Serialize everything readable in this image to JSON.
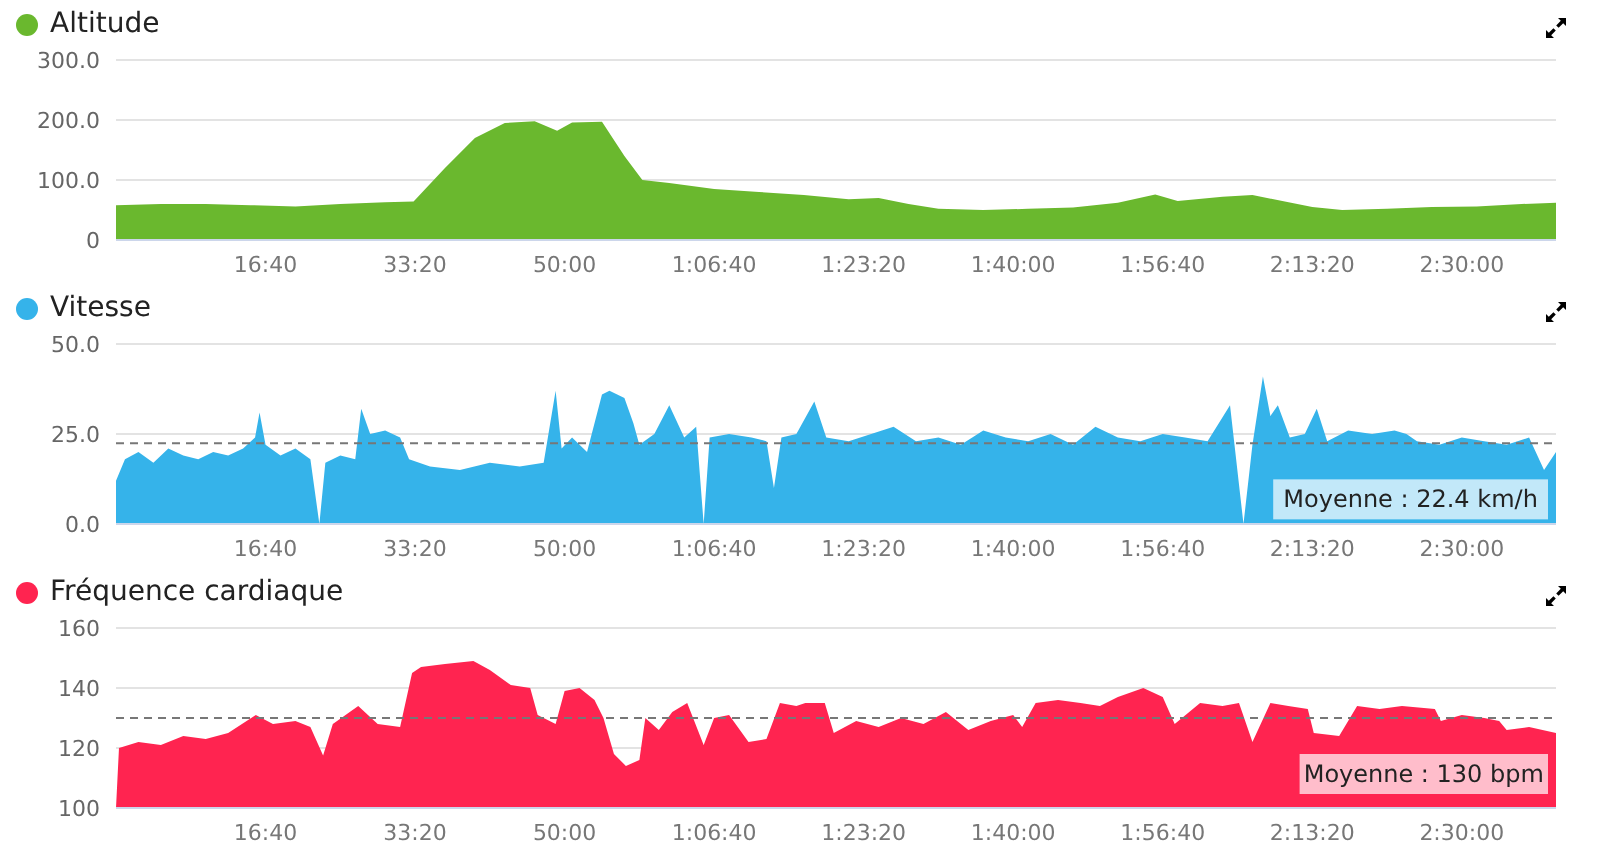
{
  "chart_data": [
    {
      "type": "area",
      "title": "Altitude",
      "xlim": [
        0,
        9630
      ],
      "xticks": [
        {
          "value": 1000,
          "label": "16:40"
        },
        {
          "value": 2000,
          "label": "33:20"
        },
        {
          "value": 3000,
          "label": "50:00"
        },
        {
          "value": 4000,
          "label": "1:06:40"
        },
        {
          "value": 5000,
          "label": "1:23:20"
        },
        {
          "value": 6000,
          "label": "1:40:00"
        },
        {
          "value": 7000,
          "label": "1:56:40"
        },
        {
          "value": 8000,
          "label": "2:13:20"
        },
        {
          "value": 9000,
          "label": "2:30:00"
        }
      ],
      "ylim": [
        0,
        300
      ],
      "yticks": [
        0,
        {
          "value": 100,
          "label": "100.0"
        },
        {
          "value": 200,
          "label": "200.0"
        },
        {
          "value": 300,
          "label": "300.0"
        }
      ],
      "grid": "y",
      "series": [
        {
          "color": "#6ab82e",
          "x": [
            0,
            300,
            600,
            900,
            1200,
            1500,
            1800,
            1990,
            2200,
            2400,
            2600,
            2800,
            2950,
            3050,
            3250,
            3400,
            3520,
            3700,
            4000,
            4300,
            4600,
            4900,
            5100,
            5300,
            5500,
            5800,
            6100,
            6400,
            6700,
            6950,
            7100,
            7400,
            7600,
            7800,
            8000,
            8200,
            8500,
            8800,
            9100,
            9400,
            9630
          ],
          "values": [
            58,
            60,
            60,
            58,
            56,
            60,
            63,
            64,
            120,
            170,
            195,
            198,
            182,
            196,
            197,
            140,
            100,
            95,
            85,
            80,
            75,
            68,
            70,
            60,
            52,
            50,
            52,
            54,
            62,
            76,
            65,
            72,
            75,
            65,
            55,
            50,
            52,
            55,
            56,
            60,
            62
          ]
        }
      ]
    },
    {
      "type": "area",
      "title": "Vitesse",
      "xlim": [
        0,
        9630
      ],
      "xticks": [
        {
          "value": 1000,
          "label": "16:40"
        },
        {
          "value": 2000,
          "label": "33:20"
        },
        {
          "value": 3000,
          "label": "50:00"
        },
        {
          "value": 4000,
          "label": "1:06:40"
        },
        {
          "value": 5000,
          "label": "1:23:20"
        },
        {
          "value": 6000,
          "label": "1:40:00"
        },
        {
          "value": 7000,
          "label": "1:56:40"
        },
        {
          "value": 8000,
          "label": "2:13:20"
        },
        {
          "value": 9000,
          "label": "2:30:00"
        }
      ],
      "ylim": [
        0,
        50
      ],
      "yticks": [
        {
          "value": 0,
          "label": "0.0"
        },
        {
          "value": 25,
          "label": "25.0"
        },
        {
          "value": 50,
          "label": "50.0"
        }
      ],
      "grid": "y",
      "ref_lines": [
        {
          "axis": "y",
          "value": 22.4,
          "label": "Moyenne : 22.4 km/h",
          "color": "#777777",
          "line_style": "dashed"
        }
      ],
      "series": [
        {
          "color": "#35b3ea",
          "x": [
            0,
            60,
            150,
            250,
            350,
            450,
            550,
            650,
            750,
            850,
            930,
            960,
            1000,
            1100,
            1200,
            1300,
            1360,
            1400,
            1500,
            1600,
            1640,
            1700,
            1800,
            1900,
            1960,
            2100,
            2300,
            2500,
            2700,
            2860,
            2940,
            2980,
            3050,
            3150,
            3250,
            3300,
            3400,
            3460,
            3500,
            3600,
            3700,
            3800,
            3880,
            3930,
            3970,
            4100,
            4250,
            4350,
            4400,
            4450,
            4550,
            4670,
            4750,
            4900,
            5050,
            5200,
            5350,
            5500,
            5650,
            5800,
            5950,
            6100,
            6250,
            6400,
            6550,
            6700,
            6850,
            7000,
            7150,
            7300,
            7450,
            7540,
            7600,
            7670,
            7720,
            7770,
            7850,
            7950,
            8030,
            8100,
            8240,
            8400,
            8550,
            8630,
            8700,
            8850,
            9000,
            9150,
            9300,
            9450,
            9550,
            9630
          ],
          "values": [
            12,
            18,
            20,
            17,
            21,
            19,
            18,
            20,
            19,
            21,
            24,
            31,
            22,
            19,
            21,
            18,
            0,
            17,
            19,
            18,
            32,
            25,
            26,
            24,
            18,
            16,
            15,
            17,
            16,
            17,
            37,
            21,
            24,
            20,
            36,
            37,
            35,
            28,
            22,
            25,
            33,
            24,
            27,
            0,
            24,
            25,
            24,
            23,
            10,
            24,
            25,
            34,
            24,
            23,
            25,
            27,
            23,
            24,
            22,
            26,
            24,
            23,
            25,
            22,
            27,
            24,
            23,
            25,
            24,
            23,
            33,
            0,
            22,
            41,
            30,
            33,
            24,
            25,
            32,
            23,
            26,
            25,
            26,
            25,
            23,
            22,
            24,
            23,
            22,
            24,
            15,
            20
          ]
        }
      ]
    },
    {
      "type": "area",
      "title": "Fréquence cardiaque",
      "xlim": [
        0,
        9630
      ],
      "xticks": [
        {
          "value": 1000,
          "label": "16:40"
        },
        {
          "value": 2000,
          "label": "33:20"
        },
        {
          "value": 3000,
          "label": "50:00"
        },
        {
          "value": 4000,
          "label": "1:06:40"
        },
        {
          "value": 5000,
          "label": "1:23:20"
        },
        {
          "value": 6000,
          "label": "1:40:00"
        },
        {
          "value": 7000,
          "label": "1:56:40"
        },
        {
          "value": 8000,
          "label": "2:13:20"
        },
        {
          "value": 9000,
          "label": "2:30:00"
        }
      ],
      "ylim": [
        100,
        160
      ],
      "yticks": [
        100,
        120,
        140,
        160
      ],
      "grid": "y",
      "ref_lines": [
        {
          "axis": "y",
          "value": 130,
          "label": "Moyenne : 130 bpm",
          "color": "#777777",
          "line_style": "dashed"
        }
      ],
      "series": [
        {
          "color": "#ff2450",
          "x": [
            0,
            20,
            150,
            300,
            450,
            600,
            750,
            935,
            1050,
            1200,
            1300,
            1385,
            1450,
            1620,
            1750,
            1900,
            1980,
            2040,
            2200,
            2390,
            2500,
            2640,
            2770,
            2820,
            2940,
            3000,
            3100,
            3200,
            3260,
            3330,
            3410,
            3500,
            3540,
            3630,
            3720,
            3820,
            3930,
            4000,
            4100,
            4230,
            4350,
            4440,
            4550,
            4610,
            4740,
            4800,
            4950,
            5100,
            5250,
            5400,
            5550,
            5700,
            5850,
            6000,
            6060,
            6150,
            6300,
            6450,
            6580,
            6700,
            6870,
            7000,
            7080,
            7250,
            7400,
            7510,
            7600,
            7720,
            7840,
            7970,
            8010,
            8180,
            8300,
            8450,
            8600,
            8820,
            8860,
            9000,
            9150,
            9250,
            9300,
            9450,
            9630
          ],
          "values": [
            100,
            120,
            122,
            121,
            124,
            123,
            125,
            131,
            128,
            129,
            127,
            117.5,
            128,
            134,
            128,
            127,
            145,
            147,
            148,
            149,
            146,
            141,
            140,
            131,
            128,
            139,
            140,
            136,
            130,
            118,
            114,
            116,
            130,
            126,
            132,
            135,
            121,
            130,
            131,
            122,
            123,
            135,
            134,
            135,
            135,
            125,
            129,
            127,
            130,
            128,
            132,
            126,
            129,
            131,
            127,
            135,
            136,
            135,
            134,
            137,
            140,
            137,
            128,
            135,
            134,
            135,
            122,
            135,
            134,
            133,
            125,
            124,
            134,
            133,
            134,
            133,
            129,
            131,
            130,
            129,
            126,
            127,
            125
          ]
        }
      ]
    }
  ]
}
